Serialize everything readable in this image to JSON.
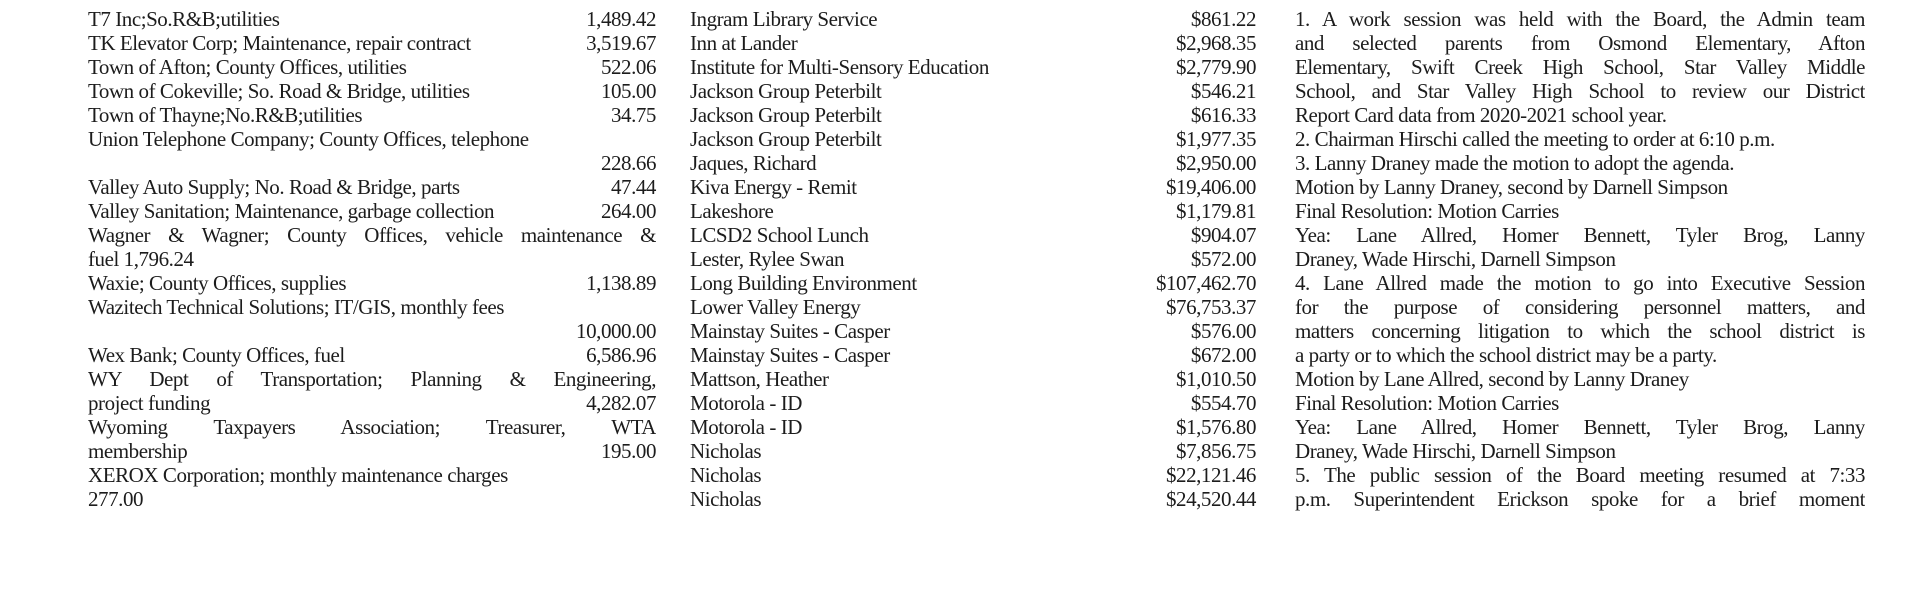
{
  "column1": [
    {
      "left": "T7 Inc;So.R&B;utilities",
      "right": "1,489.42"
    },
    {
      "left": "TK Elevator Corp; Maintenance, repair contract",
      "right": "3,519.67"
    },
    {
      "left": "Town of Afton; County Offices, utilities",
      "right": "522.06"
    },
    {
      "left": "Town of Cokeville; So. Road & Bridge, utilities",
      "right": "105.00"
    },
    {
      "left": "Town of Thayne;No.R&B;utilities",
      "right": "34.75"
    },
    {
      "left": "Union Telephone Company; County Offices, telephone",
      "right": ""
    },
    {
      "left": "",
      "right": "228.66"
    },
    {
      "left": "Valley Auto Supply; No. Road & Bridge, parts",
      "right": "47.44"
    },
    {
      "left": "Valley Sanitation; Maintenance, garbage collection",
      "right": "264.00"
    },
    {
      "left": "Wagner & Wagner; County Offices, vehicle maintenance &",
      "right": "",
      "justify": true
    },
    {
      "left": "fuel 1,796.24",
      "right": ""
    },
    {
      "left": "Waxie; County Offices, supplies",
      "right": "1,138.89"
    },
    {
      "left": "Wazitech Technical Solutions; IT/GIS, monthly fees",
      "right": ""
    },
    {
      "left": "",
      "right": "10,000.00"
    },
    {
      "left": "Wex Bank; County Offices, fuel",
      "right": "6,586.96"
    },
    {
      "left": "WY Dept of Transportation; Planning & Engineering,",
      "right": "",
      "justify": true
    },
    {
      "left": "project funding",
      "right": "4,282.07"
    },
    {
      "left": "Wyoming Taxpayers Association; Treasurer, WTA",
      "right": "",
      "justify": true
    },
    {
      "left": "membership",
      "right": "195.00"
    },
    {
      "left": "XEROX Corporation; monthly maintenance charges",
      "right": ""
    },
    {
      "left": "277.00",
      "right": ""
    }
  ],
  "column2": [
    {
      "left": "Ingram Library Service",
      "right": "$861.22"
    },
    {
      "left": "Inn at Lander",
      "right": "$2,968.35"
    },
    {
      "left": "Institute for Multi-Sensory Education",
      "right": "$2,779.90"
    },
    {
      "left": "Jackson Group Peterbilt",
      "right": "$546.21"
    },
    {
      "left": "Jackson Group Peterbilt",
      "right": "$616.33"
    },
    {
      "left": "Jackson Group Peterbilt",
      "right": "$1,977.35"
    },
    {
      "left": "Jaques, Richard",
      "right": "$2,950.00"
    },
    {
      "left": "Kiva Energy - Remit",
      "right": "$19,406.00"
    },
    {
      "left": "Lakeshore",
      "right": "$1,179.81"
    },
    {
      "left": "LCSD2 School Lunch",
      "right": "$904.07"
    },
    {
      "left": "Lester, Rylee Swan",
      "right": "$572.00"
    },
    {
      "left": "Long Building Environment",
      "right": "$107,462.70"
    },
    {
      "left": "Lower Valley Energy",
      "right": "$76,753.37"
    },
    {
      "left": "Mainstay Suites - Casper",
      "right": "$576.00"
    },
    {
      "left": "Mainstay Suites - Casper",
      "right": "$672.00"
    },
    {
      "left": "Mattson, Heather",
      "right": "$1,010.50"
    },
    {
      "left": "Motorola - ID",
      "right": "$554.70"
    },
    {
      "left": "Motorola - ID",
      "right": "$1,576.80"
    },
    {
      "left": "Nicholas",
      "right": "$7,856.75"
    },
    {
      "left": "Nicholas",
      "right": "$22,121.46"
    },
    {
      "left": "Nicholas",
      "right": "$24,520.44"
    }
  ],
  "column3": [
    {
      "text": "1. A work session was held with the Board, the Admin team",
      "justify": true
    },
    {
      "text": "and selected parents from Osmond Elementary, Afton",
      "justify": true
    },
    {
      "text": "Elementary, Swift Creek High School, Star Valley Middle",
      "justify": true
    },
    {
      "text": "School, and Star Valley High School to review our District",
      "justify": true
    },
    {
      "text": "Report Card data from 2020-2021 school year."
    },
    {
      "text": "2. Chairman Hirschi called the meeting to order at 6:10 p.m."
    },
    {
      "text": "3. Lanny Draney made the motion to adopt the agenda."
    },
    {
      "text": "Motion by Lanny Draney, second by Darnell Simpson"
    },
    {
      "text": "Final Resolution: Motion Carries"
    },
    {
      "text": "Yea: Lane Allred, Homer Bennett, Tyler Brog, Lanny",
      "justify": true
    },
    {
      "text": "Draney, Wade Hirschi, Darnell Simpson"
    },
    {
      "text": "4. Lane Allred made the motion to go into Executive Session",
      "justify": true
    },
    {
      "text": "for the purpose of considering personnel matters, and",
      "justify": true
    },
    {
      "text": "matters concerning litigation to which the school district is",
      "justify": true
    },
    {
      "text": "a party or to which the school district may be a party."
    },
    {
      "text": "Motion by Lane Allred, second by Lanny Draney"
    },
    {
      "text": "Final Resolution: Motion Carries"
    },
    {
      "text": "Yea: Lane Allred, Homer Bennett, Tyler Brog, Lanny",
      "justify": true
    },
    {
      "text": "Draney, Wade Hirschi, Darnell Simpson"
    },
    {
      "text": "5. The public session of the Board meeting resumed at 7:33",
      "justify": true
    },
    {
      "text": "p.m. Superintendent Erickson spoke for a brief moment",
      "justify": true
    }
  ]
}
